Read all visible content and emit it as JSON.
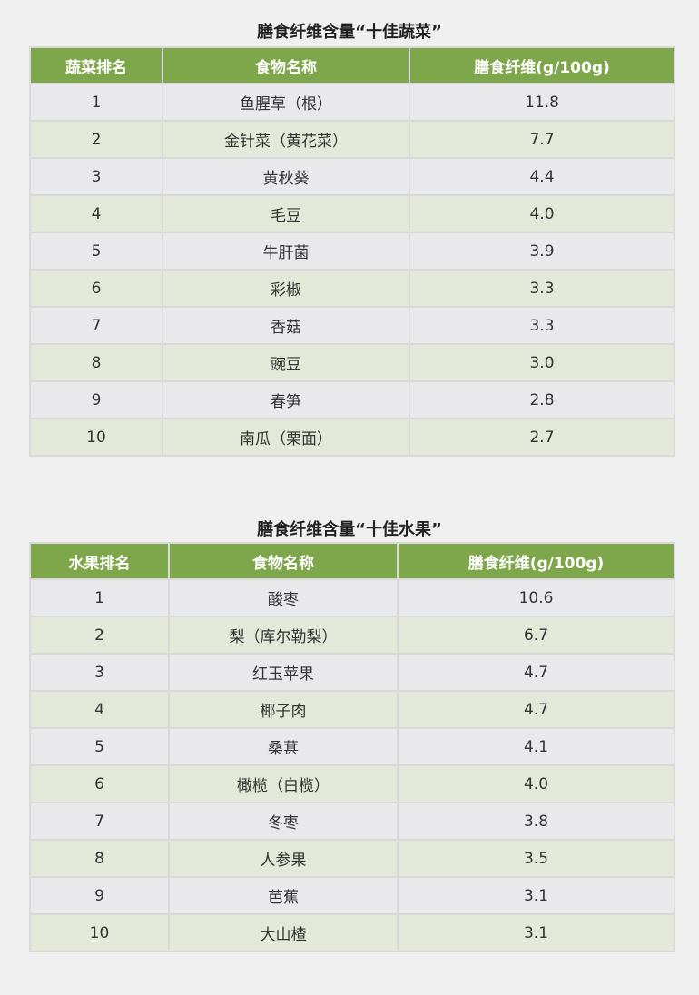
{
  "colors": {
    "header": "#7ea64a",
    "row_odd": "#e9e9ec",
    "row_even": "#e3e8d8"
  },
  "vegetables": {
    "title": "膳食纤维含量“十佳蔬菜”",
    "headers": [
      "蔬菜排名",
      "食物名称",
      "膳食纤维(g/100g)"
    ],
    "rows": [
      [
        "1",
        "鱼腥草（根）",
        "11.8"
      ],
      [
        "2",
        "金针菜（黄花菜）",
        "7.7"
      ],
      [
        "3",
        "黄秋葵",
        "4.4"
      ],
      [
        "4",
        "毛豆",
        "4.0"
      ],
      [
        "5",
        "牛肝菌",
        "3.9"
      ],
      [
        "6",
        "彩椒",
        "3.3"
      ],
      [
        "7",
        "香菇",
        "3.3"
      ],
      [
        "8",
        "豌豆",
        "3.0"
      ],
      [
        "9",
        "春笋",
        "2.8"
      ],
      [
        "10",
        "南瓜（栗面）",
        "2.7"
      ]
    ]
  },
  "fruits": {
    "title": "膳食纤维含量“十佳水果”",
    "headers": [
      "水果排名",
      "食物名称",
      "膳食纤维(g/100g)"
    ],
    "rows": [
      [
        "1",
        "酸枣",
        "10.6"
      ],
      [
        "2",
        "梨（库尔勒梨）",
        "6.7"
      ],
      [
        "3",
        "红玉苹果",
        "4.7"
      ],
      [
        "4",
        "椰子肉",
        "4.7"
      ],
      [
        "5",
        "桑葚",
        "4.1"
      ],
      [
        "6",
        "橄榄（白榄）",
        "4.0"
      ],
      [
        "7",
        "冬枣",
        "3.8"
      ],
      [
        "8",
        "人参果",
        "3.5"
      ],
      [
        "9",
        "芭蕉",
        "3.1"
      ],
      [
        "10",
        "大山楂",
        "3.1"
      ]
    ]
  }
}
